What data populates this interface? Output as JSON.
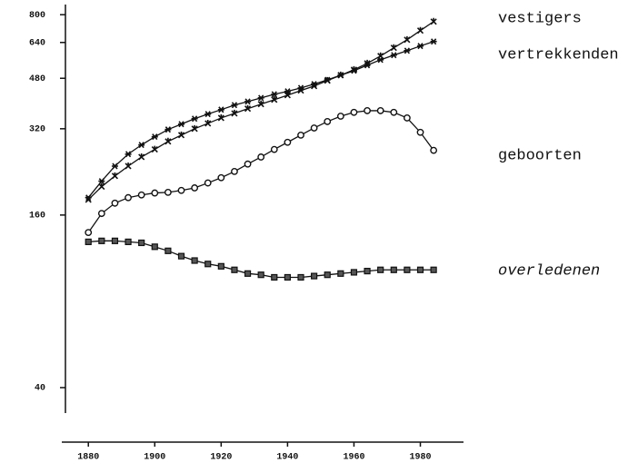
{
  "chart_data": {
    "type": "line",
    "log_y": true,
    "x": [
      1880,
      1884,
      1888,
      1892,
      1896,
      1900,
      1904,
      1908,
      1912,
      1916,
      1920,
      1924,
      1928,
      1932,
      1936,
      1940,
      1944,
      1948,
      1952,
      1956,
      1960,
      1964,
      1968,
      1972,
      1976,
      1980,
      1984
    ],
    "xlim": [
      1872,
      1993
    ],
    "xticks": [
      1880,
      1900,
      1920,
      1940,
      1960,
      1980
    ],
    "ylim": [
      32.6,
      868
    ],
    "yticks": [
      40,
      160,
      320,
      480,
      640,
      800
    ],
    "series": [
      {
        "name": "vestigers",
        "color": "#111111",
        "marker": "x",
        "values": [
          181,
          201,
          219,
          237,
          255,
          271,
          289,
          304,
          320,
          334,
          349,
          362,
          376,
          390,
          404,
          419,
          435,
          451,
          471,
          492,
          514,
          541,
          574,
          613,
          654,
          704,
          757
        ]
      },
      {
        "name": "vertrekkenden",
        "color": "#111111",
        "marker": "star",
        "values": [
          184,
          210,
          237,
          261,
          281,
          300,
          318,
          332,
          347,
          360,
          373,
          387,
          398,
          410,
          422,
          432,
          444,
          458,
          474,
          492,
          510,
          533,
          557,
          578,
          599,
          622,
          645
        ]
      },
      {
        "name": "geboorten",
        "color": "#111111",
        "marker": "circle",
        "values": [
          139,
          162,
          176,
          184,
          188,
          191,
          192,
          195,
          199,
          207,
          216,
          227,
          241,
          255,
          271,
          287,
          304,
          322,
          339,
          354,
          365,
          370,
          370,
          365,
          349,
          311,
          269
        ]
      },
      {
        "name": "overledenen",
        "color": "#111111",
        "marker": "square",
        "values": [
          129,
          130,
          130,
          129,
          128,
          124,
          120,
          115,
          111,
          108,
          106,
          103,
          100,
          99,
          97,
          97,
          97,
          98,
          99,
          100,
          101,
          102,
          103,
          103,
          103,
          103,
          103
        ]
      }
    ]
  }
}
